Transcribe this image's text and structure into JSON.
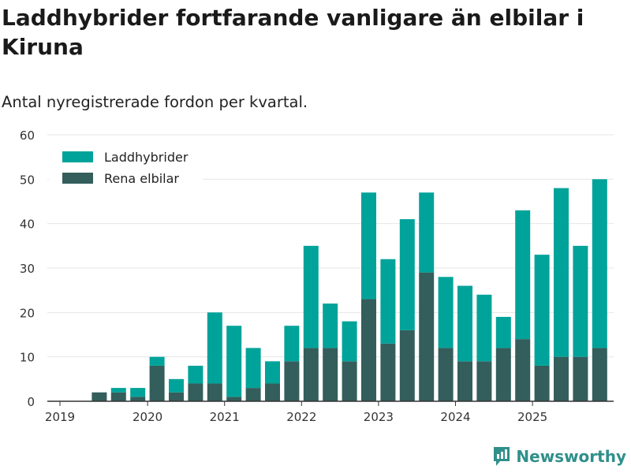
{
  "title": "Laddhybrider fortfarande vanligare än elbilar i Kiruna",
  "subtitle": "Antal nyregistrerade fordon per kvartal.",
  "brand": {
    "name": "Newsworthy",
    "icon": "newsworthy-logo-icon"
  },
  "colors": {
    "laddhybrider": "#00a39a",
    "rena_elbilar": "#335e5b",
    "grid": "#e6e6e6",
    "axis": "#333333"
  },
  "chart_data": {
    "type": "bar",
    "stacked": true,
    "title": "Laddhybrider fortfarande vanligare än elbilar i Kiruna",
    "subtitle": "Antal nyregistrerade fordon per kvartal.",
    "xlabel": "",
    "ylabel": "",
    "ylim": [
      0,
      60
    ],
    "yticks": [
      0,
      10,
      20,
      30,
      40,
      50,
      60
    ],
    "xticks": [
      "2019",
      "2020",
      "2021",
      "2022",
      "2023",
      "2024",
      "2025"
    ],
    "legend_position": "top-left",
    "categories": [
      "2019 Q1",
      "2019 Q2",
      "2019 Q3",
      "2019 Q4",
      "2020 Q1",
      "2020 Q2",
      "2020 Q3",
      "2020 Q4",
      "2021 Q1",
      "2021 Q2",
      "2021 Q3",
      "2021 Q4",
      "2022 Q1",
      "2022 Q2",
      "2022 Q3",
      "2022 Q4",
      "2023 Q1",
      "2023 Q2",
      "2023 Q3",
      "2023 Q4",
      "2024 Q1",
      "2024 Q2",
      "2024 Q3",
      "2024 Q4",
      "2025 Q1",
      "2025 Q2",
      "2025 Q3",
      "2025 Q4"
    ],
    "series": [
      {
        "name": "Rena elbilar",
        "color": "#335e5b",
        "values": [
          0,
          2,
          2,
          1,
          8,
          2,
          4,
          4,
          1,
          3,
          4,
          9,
          12,
          12,
          9,
          23,
          13,
          16,
          29,
          12,
          9,
          9,
          12,
          14,
          8,
          10,
          10,
          12
        ]
      },
      {
        "name": "Laddhybrider",
        "color": "#00a39a",
        "values": [
          0,
          0,
          1,
          2,
          2,
          3,
          4,
          16,
          16,
          9,
          5,
          8,
          23,
          10,
          9,
          24,
          19,
          25,
          18,
          16,
          17,
          15,
          7,
          29,
          25,
          38,
          25,
          38
        ]
      }
    ]
  }
}
